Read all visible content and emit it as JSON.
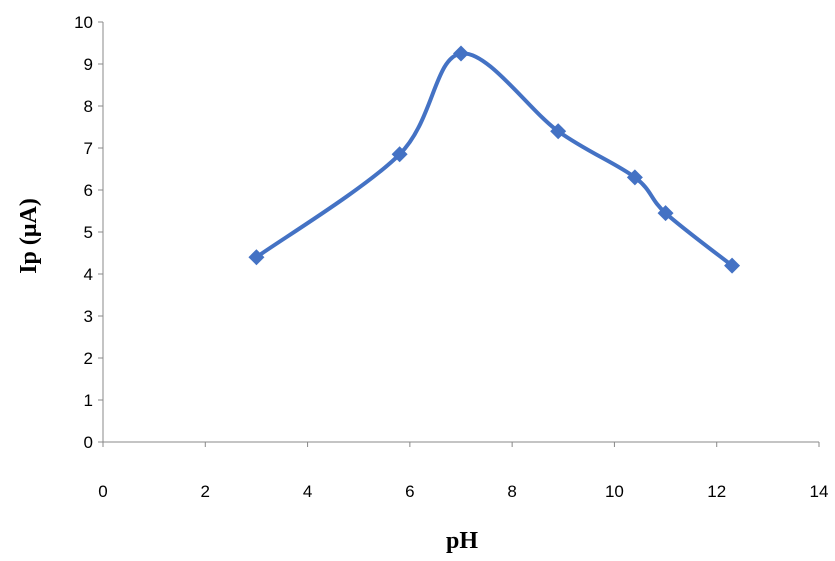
{
  "chart_data": {
    "type": "scatter",
    "title": "",
    "xlabel": "pH",
    "ylabel": "Ip (μA)",
    "xlim": [
      0,
      14
    ],
    "ylim": [
      0,
      10
    ],
    "x_ticks": [
      0,
      2,
      4,
      6,
      8,
      10,
      12,
      14
    ],
    "y_ticks": [
      0,
      1,
      2,
      3,
      4,
      5,
      6,
      7,
      8,
      9,
      10
    ],
    "grid": false,
    "legend": "none",
    "line_style": "smoothed line with markers",
    "marker": "diamond",
    "color": "#4472C4",
    "series": [
      {
        "x": [
          3.0,
          5.8,
          7.0,
          8.9,
          10.4,
          11.0,
          12.3
        ],
        "y": [
          4.4,
          6.85,
          9.25,
          7.4,
          6.3,
          5.45,
          4.2
        ]
      }
    ]
  }
}
